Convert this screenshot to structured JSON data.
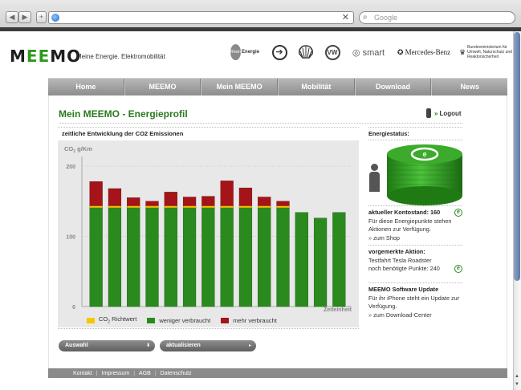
{
  "browser": {
    "search_placeholder": "Google",
    "back_label": "◀",
    "forward_label": "▶",
    "add_label": "+",
    "stop_label": "✕",
    "search_icon_glyph": "⌕"
  },
  "header": {
    "logo_left": "M",
    "logo_mid": "EE",
    "logo_right": "MO",
    "tagline": "Meine Energie. Elektromobilität",
    "partners": {
      "rhein_circle": "Rhein",
      "rhein_text": "Energie",
      "bp_glyph": "➔",
      "shell_glyph": "🐚",
      "vw_text": "VW",
      "smart_text": "◎ smart",
      "mb_text": "✪ Mercedes-Benz",
      "bmu_text": "Bundesministerium für Umwelt, Naturschutz und Reaktorsicherheit",
      "bmu_eagle": "♛"
    }
  },
  "nav": {
    "items": [
      "Home",
      "MEEMO",
      "Mein MEEMO",
      "Mobilität",
      "Download",
      "News"
    ]
  },
  "page": {
    "title": "Mein MEEMO - Energieprofil",
    "logout_label": "Logout",
    "logout_arrow": "»"
  },
  "chart_section": {
    "heading": "zeitliche Entwicklung der CO2 Emissionen"
  },
  "chart_data": {
    "type": "bar",
    "stacked": true,
    "ylabel": "CO2 g/Km",
    "xlabel": "Zeiteinheit",
    "ylim": [
      0,
      200
    ],
    "yticks": [
      0,
      100,
      200
    ],
    "reference_value": 142,
    "series": [
      {
        "name": "CO2 Richtwert",
        "color": "#f5c800"
      },
      {
        "name": "weniger verbraucht",
        "color": "#2a8a1e",
        "values": [
          142,
          142,
          142,
          142,
          142,
          142,
          142,
          142,
          142,
          142,
          142,
          134,
          126,
          134
        ]
      },
      {
        "name": "mehr verbraucht",
        "color": "#a41418",
        "values": [
          36,
          26,
          13,
          8,
          21,
          14,
          15,
          37,
          27,
          14,
          8,
          0,
          0,
          0
        ]
      }
    ],
    "grid": true,
    "legend_position": "bottom"
  },
  "controls": {
    "auswahl_label": "Auswahl",
    "auswahl_arrow": "⬍",
    "aktualisieren_label": "aktualisieren",
    "aktualisieren_arrow": "▸"
  },
  "sidebar": {
    "energiestatus_heading": "Energiestatus:",
    "kontostand_label": "aktueller Kontostand: 160",
    "kontostand_text": "Für diese Energiepunkte stehen Aktionen zur Verfügung.",
    "shop_link": "zum Shop",
    "aktion_heading": "vorgemerkte Aktion:",
    "aktion_text": "Testfahrt Tesla Roadster",
    "aktion_points": "noch benötigte Punkte: 240",
    "update_heading": "MEEMO Software Update",
    "update_text": "Für ihr iPhone steht ein Update zur Verfügung.",
    "download_link": "zum Download-Center",
    "link_chevron": "»",
    "e_glyph": "e"
  },
  "footer": {
    "links": [
      "Kontakt",
      "Impressum",
      "AGB",
      "Datenschutz"
    ],
    "separator": "|"
  }
}
